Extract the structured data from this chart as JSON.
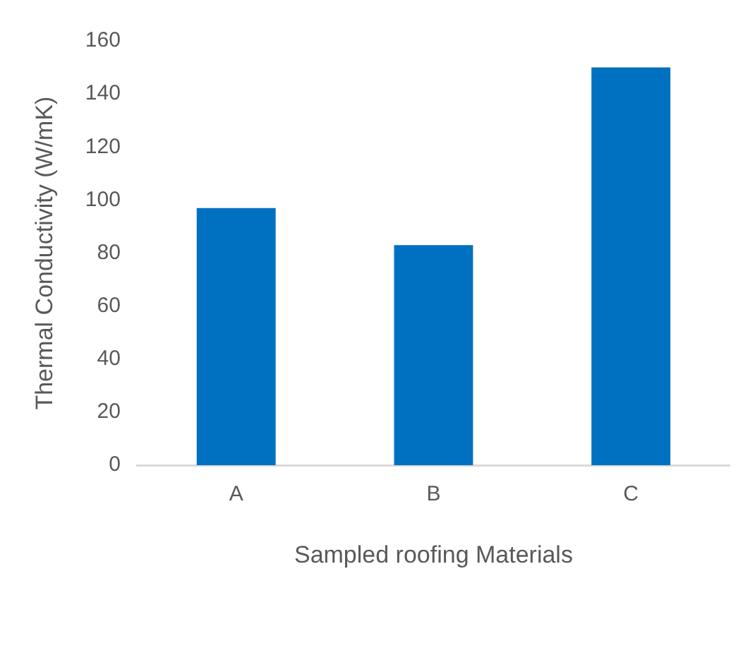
{
  "chart_data": {
    "type": "bar",
    "xlabel": "Sampled roofing Materials",
    "ylabel": "Thermal Conductivity (W/mK)",
    "categories": [
      "A",
      "B",
      "C"
    ],
    "values": [
      97,
      83,
      150
    ],
    "color": "#0070c0",
    "ylim": [
      0,
      160
    ],
    "yticks": [
      0,
      20,
      40,
      60,
      80,
      100,
      120,
      140,
      160
    ],
    "grid": false,
    "legend": false
  }
}
